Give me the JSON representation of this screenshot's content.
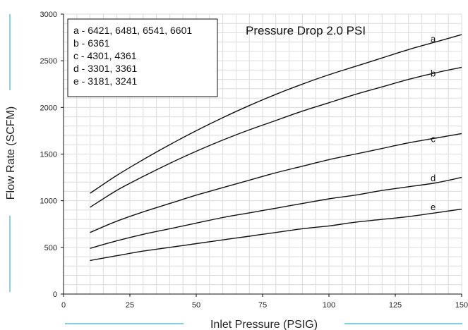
{
  "chart_data": {
    "type": "line",
    "title": "Pressure Drop 2.0 PSI",
    "xlabel": "Inlet Pressure (PSIG)",
    "ylabel": "Flow Rate (SCFM)",
    "xlim": [
      0,
      150
    ],
    "ylim": [
      0,
      3000
    ],
    "xticks": [
      "0",
      "25",
      "50",
      "75",
      "100",
      "125",
      "150"
    ],
    "yticks": [
      "0",
      "500",
      "1000",
      "1500",
      "2000",
      "2500",
      "3000"
    ],
    "grid": true,
    "legend_position": "top-left",
    "legend": [
      "a - 6421, 6481, 6541, 6601",
      "b - 6361",
      "c - 4301, 4361",
      "d - 3301, 3361",
      "e - 3181, 3241"
    ],
    "x": [
      10,
      20,
      30,
      40,
      50,
      60,
      70,
      80,
      90,
      100,
      110,
      120,
      130,
      140,
      150
    ],
    "series": [
      {
        "name": "a",
        "label_at": [
          135,
          2730
        ],
        "values": [
          1080,
          1270,
          1440,
          1600,
          1750,
          1890,
          2020,
          2140,
          2250,
          2350,
          2440,
          2530,
          2620,
          2700,
          2780
        ],
        "color": "#111111"
      },
      {
        "name": "b",
        "label_at": [
          135,
          2360
        ],
        "values": [
          930,
          1110,
          1260,
          1400,
          1530,
          1650,
          1760,
          1860,
          1960,
          2050,
          2140,
          2220,
          2300,
          2370,
          2430
        ],
        "color": "#111111"
      },
      {
        "name": "c",
        "label_at": [
          135,
          1660
        ],
        "values": [
          660,
          780,
          880,
          970,
          1060,
          1140,
          1220,
          1300,
          1370,
          1440,
          1500,
          1560,
          1620,
          1670,
          1720
        ],
        "color": "#111111"
      },
      {
        "name": "d",
        "label_at": [
          135,
          1240
        ],
        "values": [
          490,
          570,
          640,
          700,
          760,
          820,
          870,
          920,
          970,
          1020,
          1060,
          1110,
          1150,
          1190,
          1250
        ],
        "color": "#111111"
      },
      {
        "name": "e",
        "label_at": [
          135,
          930
        ],
        "values": [
          360,
          410,
          460,
          500,
          540,
          580,
          620,
          660,
          700,
          730,
          770,
          800,
          830,
          870,
          910
        ],
        "color": "#111111"
      }
    ]
  },
  "colors": {
    "grid": "#dcdcdc",
    "axis": "#111111",
    "accent_line": "#3bb3c9",
    "curve": "#111111"
  }
}
